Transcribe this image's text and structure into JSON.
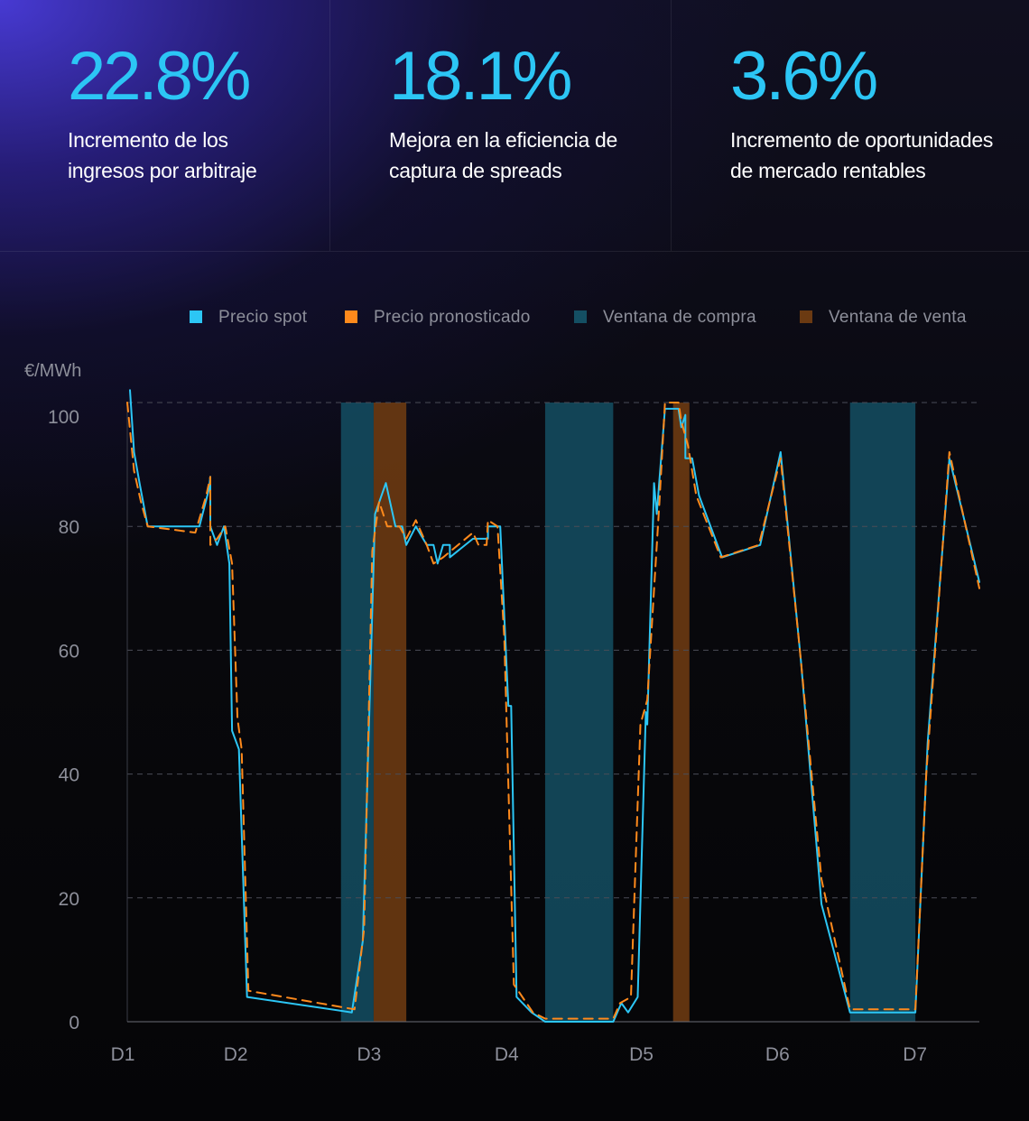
{
  "stats": [
    {
      "value": "22.8%",
      "description": "Incremento de los ingresos por arbitraje"
    },
    {
      "value": "18.1%",
      "description": "Mejora en la eficiencia de captura de spreads"
    },
    {
      "value": "3.6%",
      "description": "Incremento de oportunidades de mercado rentables"
    }
  ],
  "colors": {
    "accent": "#2cc6f5",
    "spot": "#2cc6f5",
    "forecast": "#ff8a1c",
    "buy_window": "#144f63",
    "sell_window": "#6b3a12"
  },
  "chart_data": {
    "type": "line",
    "ylabel": "€/MWh",
    "ylim": [
      0,
      100
    ],
    "yticks": [
      0,
      20,
      40,
      60,
      80,
      100
    ],
    "xlim": [
      0,
      6.26
    ],
    "xticks": [
      {
        "label": "D1",
        "x": 0
      },
      {
        "label": "D2",
        "x": 0.83
      },
      {
        "label": "D3",
        "x": 1.81
      },
      {
        "label": "D4",
        "x": 2.82
      },
      {
        "label": "D5",
        "x": 3.81
      },
      {
        "label": "D6",
        "x": 4.81
      },
      {
        "label": "D7",
        "x": 5.82
      }
    ],
    "grid": true,
    "legend_position": "top-right",
    "legend": [
      {
        "label": "Precio spot",
        "color": "#2cc6f5"
      },
      {
        "label": "Precio pronosticado",
        "color": "#ff8a1c"
      },
      {
        "label": "Ventana de compra",
        "color": "#144f63"
      },
      {
        "label": "Ventana de venta",
        "color": "#6b3a12"
      }
    ],
    "buy_windows": [
      [
        1.57,
        1.81
      ],
      [
        3.07,
        3.57
      ],
      [
        5.31,
        5.79
      ]
    ],
    "sell_windows": [
      [
        1.81,
        2.05
      ],
      [
        4.01,
        4.13
      ]
    ],
    "series": [
      {
        "name": "Precio spot",
        "style": "solid",
        "color": "#2cc6f5",
        "points": [
          [
            0.02,
            102
          ],
          [
            0.05,
            92
          ],
          [
            0.09,
            87
          ],
          [
            0.15,
            80
          ],
          [
            0.53,
            80
          ],
          [
            0.6,
            86
          ],
          [
            0.61,
            88
          ],
          [
            0.61,
            80
          ],
          [
            0.66,
            77
          ],
          [
            0.71,
            80
          ],
          [
            0.75,
            74
          ],
          [
            0.77,
            47
          ],
          [
            0.82,
            44
          ],
          [
            0.88,
            4
          ],
          [
            1.65,
            1.5
          ],
          [
            1.73,
            13
          ],
          [
            1.82,
            82
          ],
          [
            1.9,
            87
          ],
          [
            1.97,
            80
          ],
          [
            2.02,
            80
          ],
          [
            2.05,
            77
          ],
          [
            2.12,
            80
          ],
          [
            2.2,
            77
          ],
          [
            2.25,
            77
          ],
          [
            2.28,
            74
          ],
          [
            2.32,
            77
          ],
          [
            2.37,
            77
          ],
          [
            2.37,
            75
          ],
          [
            2.54,
            78
          ],
          [
            2.6,
            78
          ],
          [
            2.65,
            78
          ],
          [
            2.65,
            80
          ],
          [
            2.73,
            80
          ],
          [
            2.74,
            80
          ],
          [
            2.8,
            51
          ],
          [
            2.82,
            51
          ],
          [
            2.86,
            4
          ],
          [
            2.97,
            1.5
          ],
          [
            3.07,
            0
          ],
          [
            3.57,
            0
          ],
          [
            3.63,
            3
          ],
          [
            3.68,
            1.5
          ],
          [
            3.75,
            4
          ],
          [
            3.81,
            50
          ],
          [
            3.82,
            48
          ],
          [
            3.87,
            87
          ],
          [
            3.89,
            82
          ],
          [
            3.95,
            99
          ],
          [
            4.05,
            99
          ],
          [
            4.07,
            96
          ],
          [
            4.1,
            98
          ],
          [
            4.1,
            91
          ],
          [
            4.15,
            91
          ],
          [
            4.2,
            85
          ],
          [
            4.37,
            75
          ],
          [
            4.65,
            77
          ],
          [
            4.8,
            92
          ],
          [
            4.95,
            58
          ],
          [
            5.1,
            19
          ],
          [
            5.31,
            1.5
          ],
          [
            5.79,
            1.5
          ],
          [
            5.88,
            45
          ],
          [
            6.04,
            91
          ],
          [
            6.26,
            71
          ]
        ]
      },
      {
        "name": "Precio pronosticado",
        "style": "dashed",
        "color": "#ff8a1c",
        "points": [
          [
            0,
            100
          ],
          [
            0.05,
            89
          ],
          [
            0.1,
            84
          ],
          [
            0.15,
            80
          ],
          [
            0.5,
            79
          ],
          [
            0.58,
            85
          ],
          [
            0.61,
            88
          ],
          [
            0.61,
            77
          ],
          [
            0.66,
            78
          ],
          [
            0.72,
            80
          ],
          [
            0.77,
            74
          ],
          [
            0.81,
            49
          ],
          [
            0.84,
            44
          ],
          [
            0.89,
            5
          ],
          [
            1.67,
            2
          ],
          [
            1.74,
            15
          ],
          [
            1.8,
            76
          ],
          [
            1.85,
            84
          ],
          [
            1.91,
            80
          ],
          [
            2.0,
            80
          ],
          [
            2.05,
            78
          ],
          [
            2.12,
            81
          ],
          [
            2.2,
            77
          ],
          [
            2.25,
            74
          ],
          [
            2.32,
            75
          ],
          [
            2.54,
            79
          ],
          [
            2.58,
            77
          ],
          [
            2.64,
            77
          ],
          [
            2.65,
            81
          ],
          [
            2.72,
            80
          ],
          [
            2.77,
            62
          ],
          [
            2.84,
            6
          ],
          [
            2.98,
            1.5
          ],
          [
            3.07,
            0.5
          ],
          [
            3.57,
            0.5
          ],
          [
            3.62,
            3
          ],
          [
            3.7,
            4
          ],
          [
            3.77,
            48
          ],
          [
            3.82,
            52
          ],
          [
            3.91,
            84
          ],
          [
            3.95,
            100
          ],
          [
            4.05,
            100
          ],
          [
            4.07,
            97
          ],
          [
            4.12,
            93
          ],
          [
            4.18,
            85
          ],
          [
            4.36,
            75
          ],
          [
            4.64,
            77
          ],
          [
            4.8,
            91
          ],
          [
            4.95,
            58
          ],
          [
            5.1,
            23
          ],
          [
            5.31,
            2
          ],
          [
            5.79,
            2
          ],
          [
            5.87,
            40
          ],
          [
            6.04,
            92
          ],
          [
            6.26,
            70
          ]
        ]
      }
    ]
  }
}
